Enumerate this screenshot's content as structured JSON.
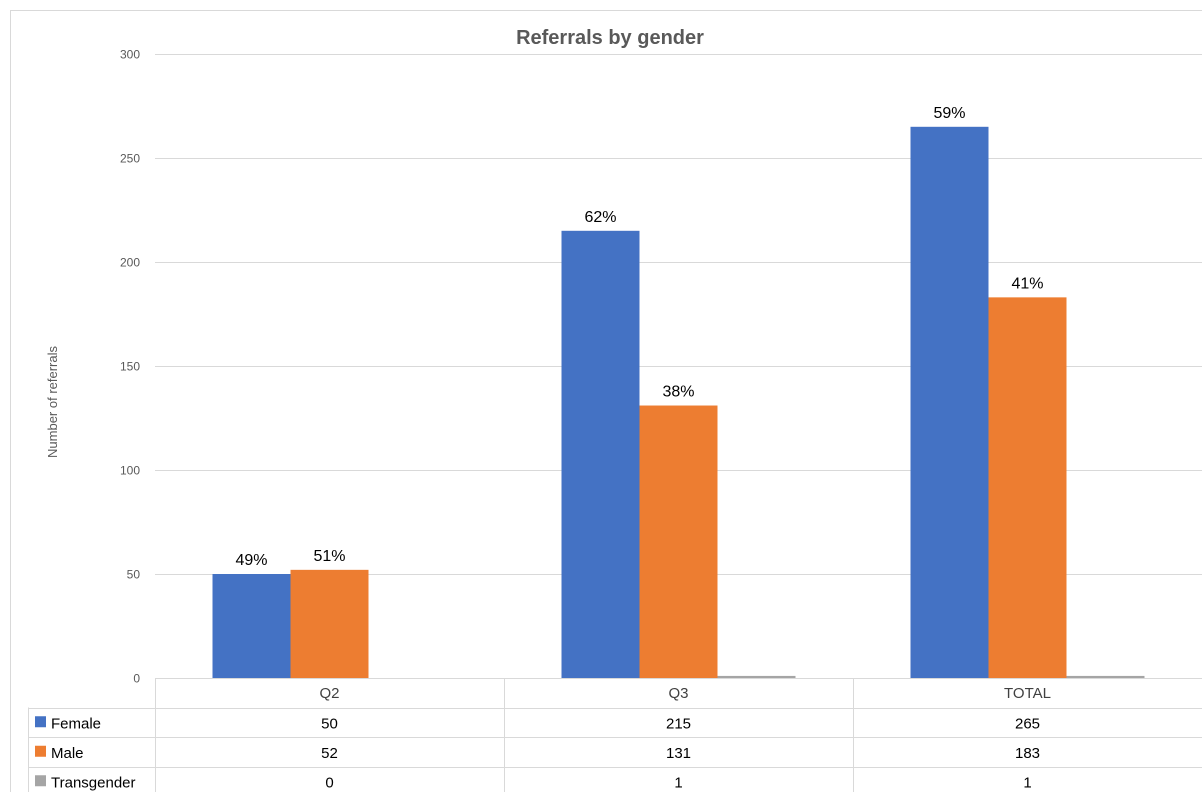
{
  "chart_data": {
    "type": "bar",
    "title": "Referrals by gender",
    "ylabel": "Number of referrals",
    "ylim": [
      0,
      300
    ],
    "yticks": [
      0,
      50,
      100,
      150,
      200,
      250,
      300
    ],
    "categories": [
      "Q2",
      "Q3",
      "TOTAL"
    ],
    "series": [
      {
        "name": "Female",
        "color": "#4472c4",
        "values": [
          50,
          215,
          265
        ],
        "labels": [
          "49%",
          "62%",
          "59%"
        ]
      },
      {
        "name": "Male",
        "color": "#ed7d31",
        "values": [
          52,
          131,
          183
        ],
        "labels": [
          "51%",
          "38%",
          "41%"
        ]
      },
      {
        "name": "Transgender",
        "color": "#a5a5a5",
        "values": [
          0,
          1,
          1
        ],
        "labels": [
          "",
          "",
          ""
        ]
      }
    ],
    "grid": true,
    "legend": "data-table"
  }
}
